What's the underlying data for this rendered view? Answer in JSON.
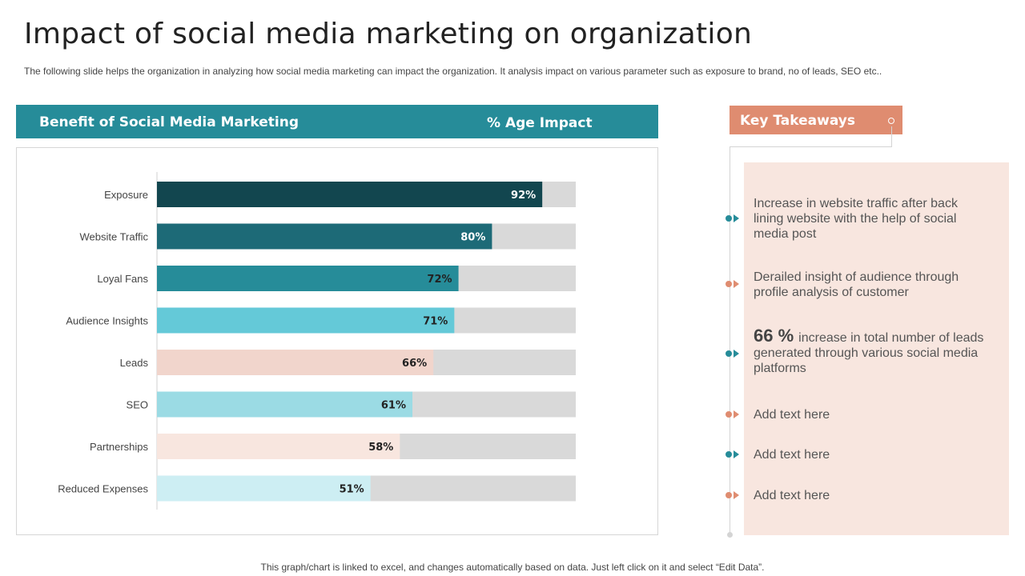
{
  "slide": {
    "title": "Impact of social media marketing on organization",
    "subtitle": "The following slide helps the organization in analyzing how social media marketing can impact the organization. It analysis impact on various parameter such as exposure to brand, no of leads, SEO etc..",
    "footer": "This graph/chart is linked to excel,  and changes automatically based on data. Just left click on it and select “Edit Data”."
  },
  "chart_header": {
    "left_label": "Benefit of Social Media Marketing",
    "right_label": "% Age Impact"
  },
  "chart_data": {
    "type": "bar",
    "orientation": "horizontal",
    "categories": [
      "Exposure",
      "Website Traffic",
      "Loyal Fans",
      "Audience Insights",
      "Leads",
      "SEO",
      "Partnerships",
      "Reduced Expenses"
    ],
    "values": [
      92,
      80,
      72,
      71,
      66,
      61,
      58,
      51
    ],
    "value_labels": [
      "92%",
      "80%",
      "72%",
      "71%",
      "66%",
      "61%",
      "58%",
      "51%"
    ],
    "xlim": [
      0,
      100
    ],
    "bar_colors": [
      "#12464f",
      "#1d6a77",
      "#268c99",
      "#64c9d8",
      "#f1d5cc",
      "#9bdbe4",
      "#f8e6df",
      "#cdeef3"
    ],
    "label_colors": [
      "#ffffff",
      "#ffffff",
      "#222222",
      "#222222",
      "#222222",
      "#222222",
      "#222222",
      "#222222"
    ],
    "track_color": "#d9d9d9",
    "grid": false,
    "legend": "none"
  },
  "key_takeaways": {
    "heading": "Key Takeaways",
    "items": [
      {
        "highlight": "",
        "text": "Increase  in website traffic after back lining website with the help of social media post",
        "marker_color": "#268c99"
      },
      {
        "highlight": "",
        "text": "Derailed insight of audience through profile analysis of customer",
        "marker_color": "#df8c70"
      },
      {
        "highlight": "66 %",
        "text": "increase in total number  of leads generated through various social media platforms",
        "marker_color": "#268c99"
      },
      {
        "highlight": "",
        "text": "Add text here",
        "marker_color": "#df8c70"
      },
      {
        "highlight": "",
        "text": "Add text here",
        "marker_color": "#268c99"
      },
      {
        "highlight": "",
        "text": "Add text here",
        "marker_color": "#df8c70"
      }
    ]
  },
  "colors": {
    "accent_teal": "#268c99",
    "accent_salmon": "#df8c70",
    "panel_bg": "#f8e6df"
  }
}
